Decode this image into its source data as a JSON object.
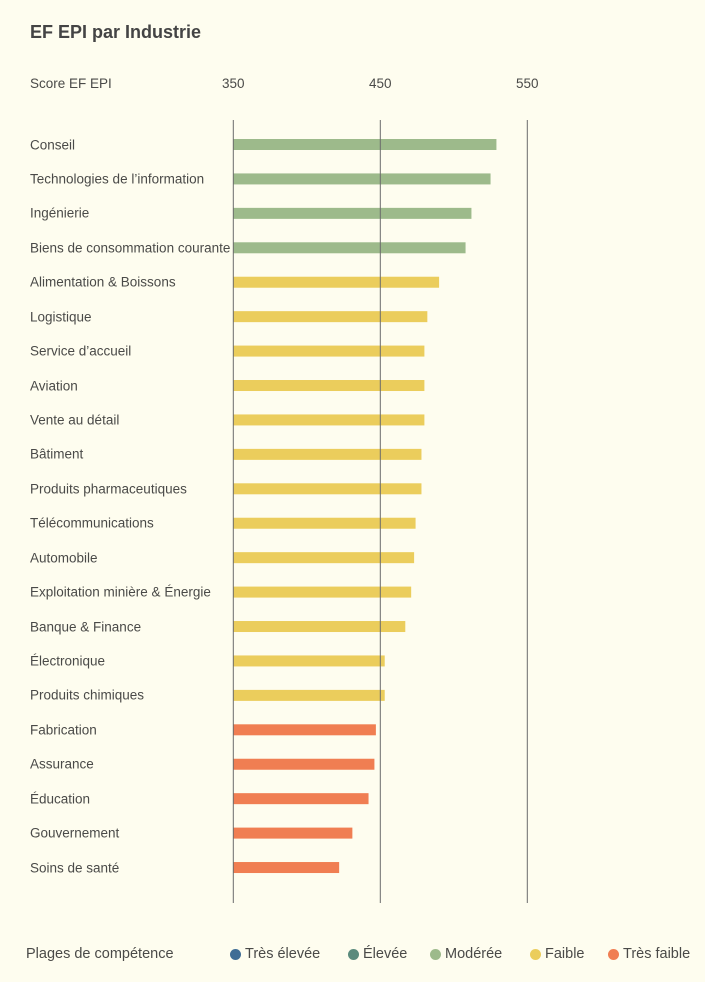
{
  "chart_data": {
    "type": "bar",
    "orientation": "horizontal",
    "title": "EF EPI par Industrie",
    "xlabel": "Score EF EPI",
    "xlim": [
      350,
      550
    ],
    "xticks": [
      "350",
      "450",
      "550"
    ],
    "grid": true,
    "categories": [
      "Conseil",
      "Technologies de l’information",
      "Ingénierie",
      "Biens de consommation courante",
      "Alimentation & Boissons",
      "Logistique",
      "Service d’accueil",
      "Aviation",
      "Vente au détail",
      "Bâtiment",
      "Produits pharmaceutiques",
      "Télécommunications",
      "Automobile",
      "Exploitation minière & Énergie",
      "Banque & Finance",
      "Électronique",
      "Produits chimiques",
      "Fabrication",
      "Assurance",
      "Éducation",
      "Gouvernement",
      "Soins de santé"
    ],
    "values": [
      529,
      525,
      512,
      508,
      490,
      482,
      480,
      480,
      480,
      478,
      478,
      474,
      473,
      471,
      467,
      453,
      453,
      447,
      446,
      442,
      431,
      422
    ],
    "bands": [
      "moderate",
      "moderate",
      "moderate",
      "moderate",
      "low",
      "low",
      "low",
      "low",
      "low",
      "low",
      "low",
      "low",
      "low",
      "low",
      "low",
      "low",
      "low",
      "very_low",
      "very_low",
      "very_low",
      "very_low",
      "very_low"
    ],
    "legend": {
      "title": "Plages de compétence",
      "position": "bottom",
      "items": [
        {
          "key": "very_high",
          "label": "Très élevée",
          "color": "#3f6d95"
        },
        {
          "key": "high",
          "label": "Élevée",
          "color": "#5b8b7d"
        },
        {
          "key": "moderate",
          "label": "Modérée",
          "color": "#9dba8b"
        },
        {
          "key": "low",
          "label": "Faible",
          "color": "#ebcd5c"
        },
        {
          "key": "very_low",
          "label": "Très faible",
          "color": "#f07e52"
        }
      ]
    }
  }
}
